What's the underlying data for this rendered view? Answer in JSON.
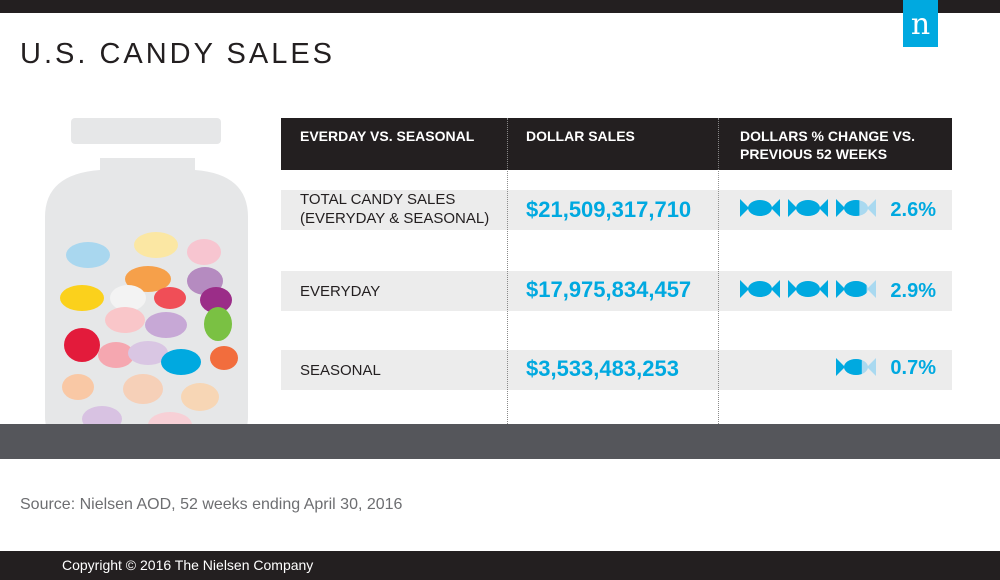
{
  "title": "U.S. CANDY SALES",
  "logo_letter": "n",
  "source": "Source: Nielsen AOD, 52 weeks ending April 30, 2016",
  "copyright": "Copyright © 2016 The Nielsen Company",
  "colors": {
    "accent": "#00a9e0",
    "dark": "#231f20",
    "band": "#55565b",
    "row_bg": "#ececec"
  },
  "chart_data": {
    "type": "table",
    "columns": [
      "EVERDAY VS. SEASONAL",
      "DOLLAR SALES",
      "DOLLARS % CHANGE VS. PREVIOUS 52 WEEKS"
    ],
    "rows": [
      {
        "label": "TOTAL CANDY SALES (EVERYDAY & SEASONAL)",
        "dollar_sales": "$21,509,317,710",
        "pct_change": "2.6%",
        "pct_value": 2.6
      },
      {
        "label": "EVERYDAY",
        "dollar_sales": "$17,975,834,457",
        "pct_change": "2.9%",
        "pct_value": 2.9
      },
      {
        "label": "SEASONAL",
        "dollar_sales": "$3,533,483,253",
        "pct_change": "0.7%",
        "pct_value": 0.7
      }
    ],
    "icon_unit_percent": 1,
    "icon_name": "wrapped-candy-icon"
  }
}
